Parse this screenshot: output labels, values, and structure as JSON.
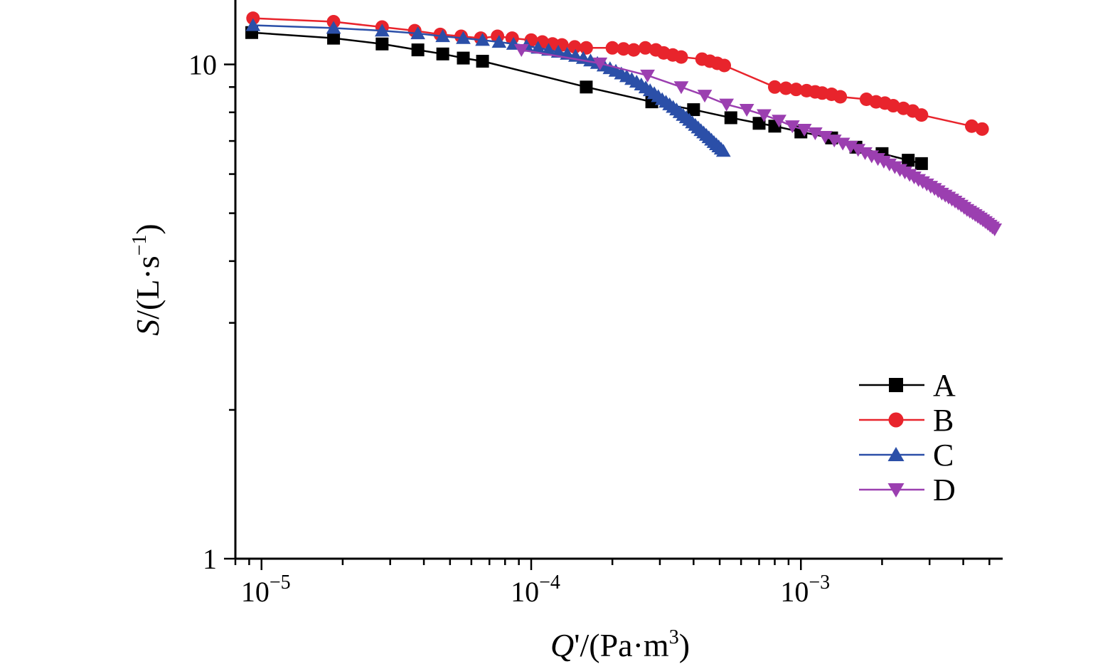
{
  "chart_data": {
    "type": "scatter",
    "x_scale": "log",
    "y_scale": "log",
    "xlim": [
      8e-06,
      0.0056
    ],
    "ylim": [
      1,
      13.5
    ],
    "grid": false,
    "legend_position": "bottom-right",
    "xlabel": {
      "italic": "Q",
      "rest": "'/(Pa·m",
      "sup": "3",
      "close": ")"
    },
    "ylabel": {
      "italic": "S",
      "rest": "/(L·s",
      "sup": "−1",
      "close": ")"
    },
    "x_ticks": [
      {
        "value": 1e-05,
        "base": "10",
        "exp": "−5"
      },
      {
        "value": 0.0001,
        "base": "10",
        "exp": "−4"
      },
      {
        "value": 0.001,
        "base": "10",
        "exp": "−3"
      }
    ],
    "y_ticks": [
      {
        "value": 1,
        "label": "1"
      },
      {
        "value": 10,
        "label": "10"
      }
    ],
    "series": [
      {
        "name": "A",
        "color": "#000000",
        "marker": "square",
        "x": [
          9.2e-06,
          1.85e-05,
          2.8e-05,
          3.8e-05,
          4.7e-05,
          5.6e-05,
          6.6e-05,
          0.00016,
          0.00028,
          0.0004,
          0.00055,
          0.0007,
          0.0008,
          0.001,
          0.0013,
          0.0016,
          0.002,
          0.0025,
          0.0028
        ],
        "y": [
          11.6,
          11.3,
          11.0,
          10.7,
          10.5,
          10.3,
          10.15,
          9.0,
          8.4,
          8.1,
          7.8,
          7.6,
          7.5,
          7.3,
          7.1,
          6.8,
          6.6,
          6.4,
          6.3
        ]
      },
      {
        "name": "B",
        "color": "#e8242c",
        "marker": "circle",
        "x": [
          9.3e-06,
          1.85e-05,
          2.8e-05,
          3.7e-05,
          4.6e-05,
          5.5e-05,
          6.5e-05,
          7.5e-05,
          8.5e-05,
          0.0001,
          0.00011,
          0.00012,
          0.00013,
          0.000145,
          0.00016,
          0.0002,
          0.00022,
          0.00024,
          0.000265,
          0.00029,
          0.00031,
          0.000335,
          0.00036,
          0.00043,
          0.00046,
          0.00049,
          0.00052,
          0.0008,
          0.00088,
          0.00096,
          0.00105,
          0.00113,
          0.0012,
          0.0013,
          0.0014,
          0.00175,
          0.0019,
          0.00205,
          0.0022,
          0.0024,
          0.0026,
          0.0028,
          0.0043,
          0.0047
        ],
        "y": [
          12.4,
          12.2,
          11.9,
          11.7,
          11.5,
          11.4,
          11.3,
          11.4,
          11.3,
          11.2,
          11.1,
          11.0,
          10.95,
          10.85,
          10.8,
          10.8,
          10.75,
          10.7,
          10.8,
          10.7,
          10.55,
          10.45,
          10.35,
          10.25,
          10.15,
          10.05,
          9.95,
          9.0,
          8.95,
          8.9,
          8.85,
          8.8,
          8.75,
          8.7,
          8.6,
          8.5,
          8.4,
          8.35,
          8.25,
          8.15,
          8.05,
          7.9,
          7.5,
          7.4
        ]
      },
      {
        "name": "C",
        "color": "#2b4fa8",
        "marker": "triangle-up",
        "x": [
          9.3e-06,
          1.85e-05,
          2.8e-05,
          3.8e-05,
          4.7e-05,
          5.6e-05,
          6.6e-05,
          7.6e-05,
          8.6e-05,
          9.6e-05,
          0.000106,
          0.000116,
          0.000126,
          0.000136,
          0.000146,
          0.000156,
          0.000166,
          0.000176,
          0.000186,
          0.000196,
          0.000206,
          0.000216,
          0.000226,
          0.000236,
          0.000246,
          0.000256,
          0.000266,
          0.000276,
          0.000286,
          0.000296,
          0.000306,
          0.000316,
          0.000326,
          0.000336,
          0.000346,
          0.000356,
          0.000366,
          0.000376,
          0.000386,
          0.000396,
          0.000406,
          0.000416,
          0.000426,
          0.000436,
          0.000446,
          0.000456,
          0.000466,
          0.000476,
          0.000486,
          0.000496,
          0.000506,
          0.000516
        ],
        "y": [
          12.0,
          11.85,
          11.7,
          11.55,
          11.4,
          11.3,
          11.2,
          11.1,
          11.0,
          10.9,
          10.8,
          10.7,
          10.6,
          10.5,
          10.4,
          10.3,
          10.18,
          10.06,
          9.94,
          9.82,
          9.7,
          9.58,
          9.46,
          9.34,
          9.22,
          9.1,
          8.98,
          8.86,
          8.74,
          8.62,
          8.5,
          8.4,
          8.3,
          8.2,
          8.1,
          8.0,
          7.9,
          7.81,
          7.72,
          7.63,
          7.54,
          7.45,
          7.36,
          7.28,
          7.2,
          7.12,
          7.04,
          6.96,
          6.89,
          6.82,
          6.75,
          6.68
        ]
      },
      {
        "name": "D",
        "color": "#9b3fb0",
        "marker": "triangle-down",
        "x": [
          9.2e-05,
          0.00018,
          0.00027,
          0.00036,
          0.00044,
          0.00053,
          0.00063,
          0.00073,
          0.00083,
          0.00093,
          0.00103,
          0.00113,
          0.00123,
          0.00133,
          0.00143,
          0.00153,
          0.00163,
          0.00173,
          0.00183,
          0.00193,
          0.00203,
          0.00213,
          0.00223,
          0.00233,
          0.00243,
          0.00253,
          0.00263,
          0.00273,
          0.00283,
          0.00293,
          0.00303,
          0.00313,
          0.00323,
          0.00333,
          0.00343,
          0.00353,
          0.00363,
          0.00373,
          0.00383,
          0.00393,
          0.00403,
          0.00413,
          0.00423,
          0.00433,
          0.00443,
          0.00453,
          0.00463,
          0.00473,
          0.00483,
          0.00493,
          0.00503,
          0.00513,
          0.00523
        ],
        "y": [
          10.7,
          10.05,
          9.5,
          9.0,
          8.65,
          8.3,
          8.1,
          7.9,
          7.7,
          7.5,
          7.38,
          7.26,
          7.14,
          7.02,
          6.92,
          6.82,
          6.72,
          6.62,
          6.52,
          6.44,
          6.36,
          6.28,
          6.2,
          6.12,
          6.05,
          5.98,
          5.91,
          5.84,
          5.78,
          5.72,
          5.66,
          5.6,
          5.54,
          5.48,
          5.43,
          5.38,
          5.33,
          5.28,
          5.23,
          5.18,
          5.13,
          5.08,
          5.04,
          5.0,
          4.96,
          4.92,
          4.88,
          4.84,
          4.8,
          4.76,
          4.72,
          4.68,
          4.64
        ]
      }
    ]
  }
}
